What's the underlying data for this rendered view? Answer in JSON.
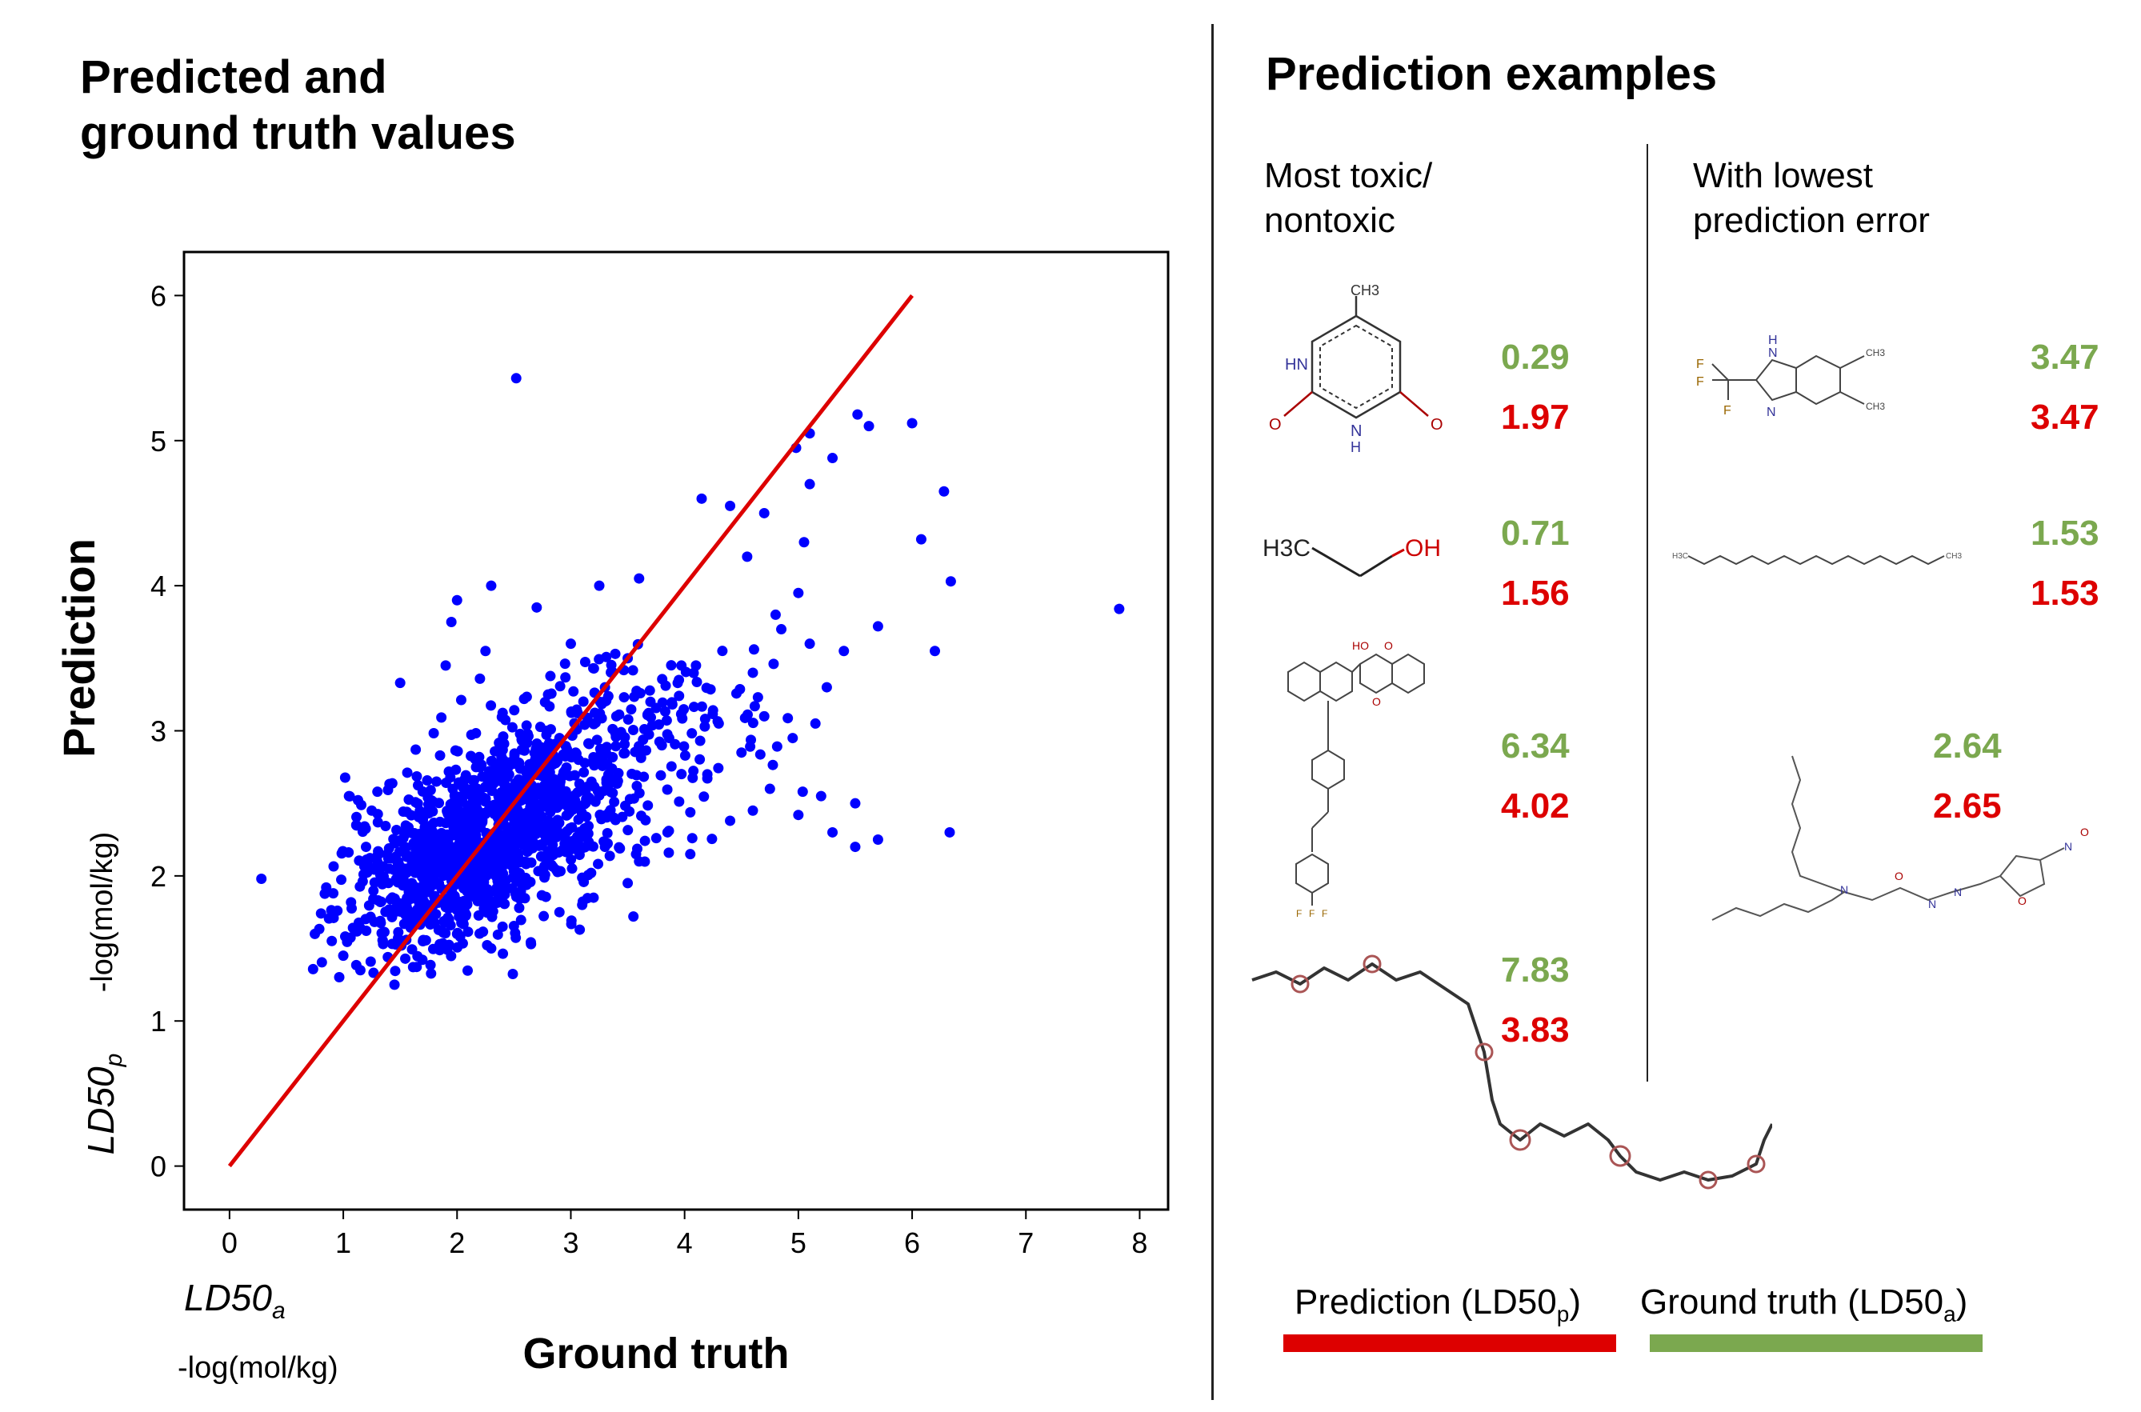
{
  "left_title": [
    "Predicted and",
    "ground truth values"
  ],
  "right_title": "Prediction examples",
  "col1_header": [
    "Most toxic/",
    "nontoxic"
  ],
  "col2_header": [
    "With lowest",
    "prediction error"
  ],
  "chart_data": {
    "type": "scatter",
    "ylabel": "Prediction",
    "ylabel_math": "LD50",
    "ylabel_sub": "p",
    "ylabel_unit": "-log(mol/kg)",
    "xlabel": "Ground truth",
    "xlabel_math": "LD50",
    "xlabel_sub": "a",
    "xlabel_unit": "-log(mol/kg)",
    "xlim": [
      -0.4,
      8.25
    ],
    "ylim": [
      -0.3,
      6.3
    ],
    "xticks": [
      0,
      1,
      2,
      3,
      4,
      5,
      6,
      7,
      8
    ],
    "yticks": [
      0,
      1,
      2,
      3,
      4,
      5,
      6
    ],
    "marker_color": "#0000ff",
    "line_color": "#dd0000",
    "identity_line": {
      "x": [
        0,
        6
      ],
      "y": [
        0,
        6
      ]
    },
    "points": [
      [
        2.52,
        5.43
      ],
      [
        5.52,
        5.18
      ],
      [
        5.62,
        5.1
      ],
      [
        6.0,
        5.12
      ],
      [
        5.1,
        5.05
      ],
      [
        4.98,
        4.95
      ],
      [
        5.3,
        4.88
      ],
      [
        5.1,
        4.7
      ],
      [
        6.28,
        4.65
      ],
      [
        6.08,
        4.32
      ],
      [
        6.34,
        4.03
      ],
      [
        7.82,
        3.84
      ],
      [
        6.2,
        3.55
      ],
      [
        5.7,
        3.72
      ],
      [
        6.33,
        2.3
      ],
      [
        0.28,
        1.98
      ],
      [
        4.15,
        4.6
      ],
      [
        4.4,
        4.55
      ],
      [
        4.7,
        4.5
      ],
      [
        5.05,
        4.3
      ],
      [
        4.55,
        4.2
      ],
      [
        5.0,
        3.95
      ],
      [
        4.8,
        3.8
      ],
      [
        3.6,
        4.05
      ],
      [
        3.25,
        4.0
      ],
      [
        2.3,
        4.0
      ],
      [
        2.7,
        3.85
      ],
      [
        2.0,
        3.9
      ],
      [
        1.95,
        3.75
      ],
      [
        1.9,
        3.45
      ],
      [
        2.25,
        3.55
      ],
      [
        1.5,
        3.33
      ],
      [
        3.0,
        3.6
      ],
      [
        3.5,
        3.5
      ],
      [
        4.1,
        3.45
      ],
      [
        4.6,
        3.4
      ],
      [
        5.25,
        3.3
      ],
      [
        5.4,
        3.55
      ],
      [
        5.15,
        3.05
      ],
      [
        4.95,
        2.95
      ],
      [
        4.5,
        2.85
      ],
      [
        4.2,
        2.7
      ],
      [
        4.75,
        2.6
      ],
      [
        5.2,
        2.55
      ],
      [
        5.5,
        2.5
      ],
      [
        5.0,
        2.42
      ],
      [
        4.6,
        2.45
      ],
      [
        4.4,
        2.38
      ],
      [
        3.85,
        2.3
      ],
      [
        4.05,
        2.15
      ],
      [
        3.6,
        2.1
      ],
      [
        3.3,
        2.2
      ],
      [
        3.5,
        1.95
      ],
      [
        3.2,
        1.85
      ],
      [
        2.9,
        1.75
      ],
      [
        2.65,
        1.53
      ],
      [
        2.4,
        1.65
      ],
      [
        3.55,
        1.72
      ],
      [
        3.1,
        1.8
      ],
      [
        1.2,
        2.2
      ],
      [
        1.25,
        2.45
      ],
      [
        1.05,
        2.55
      ],
      [
        1.3,
        2.58
      ],
      [
        0.85,
        1.92
      ],
      [
        0.9,
        1.75
      ],
      [
        0.75,
        1.6
      ],
      [
        1.0,
        1.45
      ],
      [
        1.15,
        1.35
      ],
      [
        1.45,
        1.25
      ],
      [
        1.7,
        1.55
      ],
      [
        2.0,
        1.6
      ],
      [
        2.3,
        1.5
      ],
      [
        4.85,
        3.7
      ],
      [
        5.1,
        3.6
      ],
      [
        3.3,
        3.3
      ],
      [
        2.9,
        2.95
      ],
      [
        2.8,
        3.25
      ],
      [
        3.4,
        3.1
      ],
      [
        3.7,
        3.2
      ],
      [
        3.95,
        3.35
      ],
      [
        4.3,
        3.05
      ],
      [
        3.8,
        2.9
      ],
      [
        4.7,
        3.1
      ],
      [
        5.5,
        2.2
      ],
      [
        5.7,
        2.25
      ],
      [
        5.3,
        2.3
      ]
    ],
    "cluster": {
      "cx": 2.15,
      "cy": 2.2,
      "sx": 0.55,
      "sy": 0.3,
      "n": 1100,
      "seed": 7
    },
    "cluster2": {
      "cx": 3.2,
      "cy": 2.75,
      "sx": 0.75,
      "sy": 0.45,
      "n": 350,
      "seed": 13
    }
  },
  "examples": {
    "most_toxic": [
      {
        "gt": "0.29",
        "pred": "1.97",
        "atoms": [
          "CH3",
          "HN",
          "N",
          "H",
          "O",
          "O"
        ]
      },
      {
        "gt": "0.71",
        "pred": "1.56",
        "atoms": [
          "H3C",
          "OH"
        ]
      },
      {
        "gt": "6.34",
        "pred": "4.02",
        "atoms": [
          "HO",
          "O",
          "O",
          "F",
          "F",
          "F"
        ]
      },
      {
        "gt": "7.83",
        "pred": "3.83"
      }
    ],
    "lowest_error": [
      {
        "gt": "3.47",
        "pred": "3.47",
        "atoms": [
          "F",
          "F",
          "F",
          "H",
          "N",
          "N",
          "CH3",
          "CH3"
        ]
      },
      {
        "gt": "1.53",
        "pred": "1.53",
        "atoms": [
          "H3C",
          "CH3"
        ]
      },
      {
        "gt": "2.64",
        "pred": "2.65",
        "atoms": [
          "N",
          "O",
          "N",
          "N",
          "O",
          "N",
          "O"
        ]
      }
    ]
  },
  "legend": {
    "pred_label": "Prediction (LD50",
    "pred_sub": "p",
    "gt_label": "Ground truth (LD50",
    "gt_sub": "a",
    "close": ")",
    "pred_color": "#dd0000",
    "gt_color": "#7ba84f"
  }
}
